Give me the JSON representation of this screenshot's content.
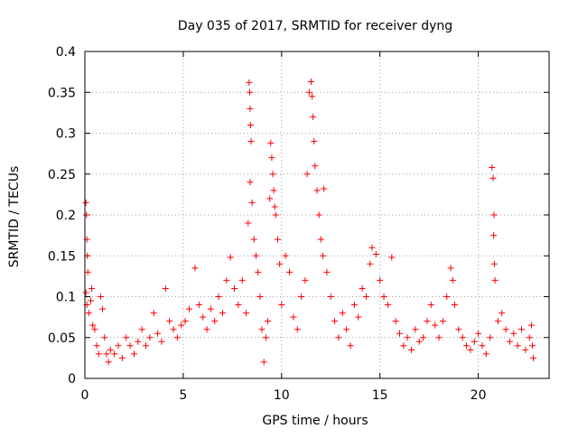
{
  "chart_data": {
    "type": "scatter",
    "title": "Day 035 of 2017, SRMTID for receiver dyng",
    "xlabel": "GPS time / hours",
    "ylabel": "SRMTID / TECUs",
    "xlim": [
      0,
      23.6
    ],
    "ylim": [
      0,
      0.4
    ],
    "x_ticks": [
      0,
      5,
      10,
      15,
      20
    ],
    "x_tick_labels": [
      "0",
      "5",
      "10",
      "15",
      "20"
    ],
    "y_ticks": [
      0,
      0.05,
      0.1,
      0.15,
      0.2,
      0.25,
      0.3,
      0.35,
      0.4
    ],
    "y_tick_labels": [
      "0",
      "0.05",
      "0.1",
      "0.15",
      "0.2",
      "0.25",
      "0.3",
      "0.35",
      "0.4"
    ],
    "grid": true,
    "marker": "+",
    "marker_color": "#ff0000",
    "series": [
      {
        "name": "SRMTID",
        "points": [
          [
            0.05,
            0.215
          ],
          [
            0.08,
            0.2
          ],
          [
            0.1,
            0.17
          ],
          [
            0.12,
            0.15
          ],
          [
            0.15,
            0.13
          ],
          [
            0.05,
            0.105
          ],
          [
            0.1,
            0.09
          ],
          [
            0.2,
            0.08
          ],
          [
            0.3,
            0.095
          ],
          [
            0.35,
            0.11
          ],
          [
            0.4,
            0.065
          ],
          [
            0.5,
            0.06
          ],
          [
            0.6,
            0.04
          ],
          [
            0.7,
            0.03
          ],
          [
            0.8,
            0.1
          ],
          [
            0.9,
            0.085
          ],
          [
            1.0,
            0.05
          ],
          [
            1.1,
            0.03
          ],
          [
            1.2,
            0.02
          ],
          [
            1.3,
            0.035
          ],
          [
            1.5,
            0.03
          ],
          [
            1.7,
            0.04
          ],
          [
            1.9,
            0.025
          ],
          [
            2.1,
            0.05
          ],
          [
            2.3,
            0.04
          ],
          [
            2.5,
            0.03
          ],
          [
            2.7,
            0.045
          ],
          [
            2.9,
            0.06
          ],
          [
            3.1,
            0.04
          ],
          [
            3.3,
            0.05
          ],
          [
            3.5,
            0.08
          ],
          [
            3.7,
            0.055
          ],
          [
            3.9,
            0.045
          ],
          [
            4.1,
            0.11
          ],
          [
            4.3,
            0.07
          ],
          [
            4.5,
            0.06
          ],
          [
            4.7,
            0.05
          ],
          [
            4.9,
            0.065
          ],
          [
            5.1,
            0.07
          ],
          [
            5.3,
            0.085
          ],
          [
            5.6,
            0.135
          ],
          [
            5.8,
            0.09
          ],
          [
            6.0,
            0.075
          ],
          [
            6.2,
            0.06
          ],
          [
            6.4,
            0.085
          ],
          [
            6.6,
            0.07
          ],
          [
            6.8,
            0.1
          ],
          [
            7.0,
            0.08
          ],
          [
            7.2,
            0.12
          ],
          [
            7.4,
            0.148
          ],
          [
            7.6,
            0.11
          ],
          [
            7.8,
            0.09
          ],
          [
            8.0,
            0.12
          ],
          [
            8.2,
            0.08
          ],
          [
            8.35,
            0.362
          ],
          [
            8.38,
            0.35
          ],
          [
            8.4,
            0.33
          ],
          [
            8.42,
            0.31
          ],
          [
            8.45,
            0.29
          ],
          [
            8.4,
            0.24
          ],
          [
            8.5,
            0.215
          ],
          [
            8.3,
            0.19
          ],
          [
            8.6,
            0.17
          ],
          [
            8.7,
            0.15
          ],
          [
            8.8,
            0.13
          ],
          [
            8.9,
            0.1
          ],
          [
            9.0,
            0.06
          ],
          [
            9.1,
            0.02
          ],
          [
            9.2,
            0.05
          ],
          [
            9.3,
            0.07
          ],
          [
            9.45,
            0.288
          ],
          [
            9.5,
            0.27
          ],
          [
            9.55,
            0.25
          ],
          [
            9.6,
            0.23
          ],
          [
            9.65,
            0.21
          ],
          [
            9.7,
            0.2
          ],
          [
            9.4,
            0.22
          ],
          [
            9.8,
            0.17
          ],
          [
            9.9,
            0.14
          ],
          [
            10.0,
            0.09
          ],
          [
            10.2,
            0.15
          ],
          [
            10.4,
            0.13
          ],
          [
            10.6,
            0.075
          ],
          [
            10.8,
            0.06
          ],
          [
            11.0,
            0.1
          ],
          [
            11.2,
            0.12
          ],
          [
            11.4,
            0.35
          ],
          [
            11.5,
            0.363
          ],
          [
            11.55,
            0.345
          ],
          [
            11.6,
            0.32
          ],
          [
            11.65,
            0.29
          ],
          [
            11.7,
            0.26
          ],
          [
            11.3,
            0.25
          ],
          [
            11.8,
            0.23
          ],
          [
            11.9,
            0.2
          ],
          [
            12.0,
            0.17
          ],
          [
            12.1,
            0.15
          ],
          [
            12.15,
            0.232
          ],
          [
            12.3,
            0.13
          ],
          [
            12.5,
            0.1
          ],
          [
            12.7,
            0.07
          ],
          [
            12.9,
            0.05
          ],
          [
            13.1,
            0.08
          ],
          [
            13.3,
            0.06
          ],
          [
            13.5,
            0.04
          ],
          [
            13.7,
            0.09
          ],
          [
            13.9,
            0.075
          ],
          [
            14.1,
            0.11
          ],
          [
            14.3,
            0.1
          ],
          [
            14.5,
            0.14
          ],
          [
            14.6,
            0.16
          ],
          [
            14.8,
            0.152
          ],
          [
            15.0,
            0.12
          ],
          [
            15.2,
            0.1
          ],
          [
            15.4,
            0.09
          ],
          [
            15.6,
            0.148
          ],
          [
            15.8,
            0.07
          ],
          [
            16.0,
            0.055
          ],
          [
            16.2,
            0.04
          ],
          [
            16.4,
            0.05
          ],
          [
            16.6,
            0.035
          ],
          [
            16.8,
            0.06
          ],
          [
            17.0,
            0.045
          ],
          [
            17.2,
            0.05
          ],
          [
            17.4,
            0.07
          ],
          [
            17.6,
            0.09
          ],
          [
            17.8,
            0.065
          ],
          [
            18.0,
            0.05
          ],
          [
            18.2,
            0.07
          ],
          [
            18.4,
            0.1
          ],
          [
            18.6,
            0.135
          ],
          [
            18.7,
            0.12
          ],
          [
            18.8,
            0.09
          ],
          [
            19.0,
            0.06
          ],
          [
            19.2,
            0.05
          ],
          [
            19.4,
            0.04
          ],
          [
            19.6,
            0.035
          ],
          [
            19.8,
            0.045
          ],
          [
            20.0,
            0.055
          ],
          [
            20.2,
            0.04
          ],
          [
            20.4,
            0.03
          ],
          [
            20.6,
            0.05
          ],
          [
            20.7,
            0.258
          ],
          [
            20.75,
            0.245
          ],
          [
            20.8,
            0.2
          ],
          [
            20.78,
            0.175
          ],
          [
            20.82,
            0.14
          ],
          [
            20.85,
            0.12
          ],
          [
            21.0,
            0.07
          ],
          [
            21.2,
            0.08
          ],
          [
            21.4,
            0.06
          ],
          [
            21.6,
            0.045
          ],
          [
            21.8,
            0.055
          ],
          [
            22.0,
            0.04
          ],
          [
            22.2,
            0.06
          ],
          [
            22.4,
            0.035
          ],
          [
            22.6,
            0.05
          ],
          [
            22.7,
            0.065
          ],
          [
            22.75,
            0.04
          ],
          [
            22.8,
            0.025
          ]
        ]
      }
    ]
  }
}
